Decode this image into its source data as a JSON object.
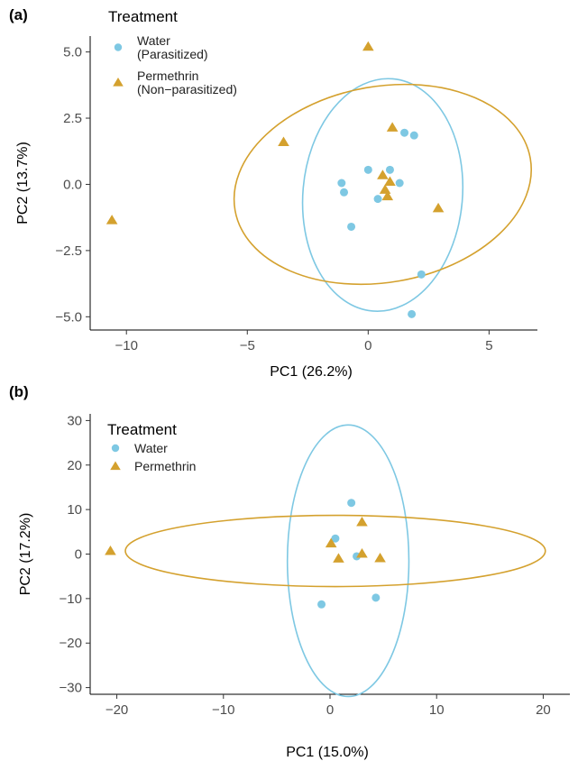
{
  "chart_data": [
    {
      "type": "scatter",
      "panel": "(a)",
      "xlabel": "PC1 (26.2%)",
      "ylabel": "PC2 (13.7%)",
      "xlim": [
        -11.5,
        7.0
      ],
      "ylim": [
        -5.5,
        5.6
      ],
      "xticks": [
        -10,
        -5,
        0,
        5
      ],
      "yticks": [
        -5.0,
        -2.5,
        0.0,
        2.5,
        5.0
      ],
      "xtick_labels": [
        "−10",
        "−5",
        "0",
        "5"
      ],
      "ytick_labels": [
        "−5.0",
        "−2.5",
        "0.0",
        "2.5",
        "5.0"
      ],
      "grid": false,
      "legend": {
        "title": "Treatment",
        "placement": "top-left",
        "entries": [
          {
            "lines": [
              "Water",
              "(Parasitized)"
            ],
            "series": 0
          },
          {
            "lines": [
              "Permethrin",
              "(Non−parasitized)"
            ],
            "series": 1
          }
        ]
      },
      "series": [
        {
          "name": "Water (Parasitized)",
          "marker": "circle",
          "color": "#7ec8e3",
          "points": [
            [
              1.5,
              1.95
            ],
            [
              1.9,
              1.85
            ],
            [
              0.0,
              0.55
            ],
            [
              0.9,
              0.55
            ],
            [
              -1.1,
              0.05
            ],
            [
              -1.0,
              -0.3
            ],
            [
              1.3,
              0.05
            ],
            [
              0.4,
              -0.55
            ],
            [
              -0.7,
              -1.6
            ],
            [
              2.2,
              -3.4
            ],
            [
              1.8,
              -4.9
            ]
          ]
        },
        {
          "name": "Permethrin (Non−parasitized)",
          "marker": "triangle",
          "color": "#d4a12e",
          "points": [
            [
              0.0,
              5.2
            ],
            [
              1.0,
              2.15
            ],
            [
              -3.5,
              1.6
            ],
            [
              0.6,
              0.35
            ],
            [
              0.9,
              0.1
            ],
            [
              0.7,
              -0.2
            ],
            [
              0.8,
              -0.45
            ],
            [
              2.9,
              -0.9
            ],
            [
              -10.6,
              -1.35
            ]
          ]
        }
      ],
      "ellipses": [
        {
          "series": 0,
          "color": "#7ec8e3",
          "cx": 0.6,
          "cy": -0.4,
          "rx": 3.3,
          "ry": 4.4,
          "angle": 5
        },
        {
          "series": 1,
          "color": "#d4a12e",
          "cx": 0.6,
          "cy": 0.0,
          "rx": 6.2,
          "ry": 3.7,
          "angle": -10
        }
      ]
    },
    {
      "type": "scatter",
      "panel": "(b)",
      "xlabel": "PC1 (15.0%)",
      "ylabel": "PC2 (17.2%)",
      "xlim": [
        -22.5,
        22.5
      ],
      "ylim": [
        -31.5,
        31.5
      ],
      "xticks": [
        -20,
        -10,
        0,
        10,
        20
      ],
      "yticks": [
        -30,
        -20,
        -10,
        0,
        10,
        20,
        30
      ],
      "xtick_labels": [
        "−20",
        "−10",
        "0",
        "10",
        "20"
      ],
      "ytick_labels": [
        "−30",
        "−20",
        "−10",
        "0",
        "10",
        "20",
        "30"
      ],
      "grid": false,
      "legend": {
        "title": "Treatment",
        "placement": "top-left",
        "entries": [
          {
            "lines": [
              "Water"
            ],
            "series": 0
          },
          {
            "lines": [
              "Permethrin"
            ],
            "series": 1
          }
        ]
      },
      "series": [
        {
          "name": "Water",
          "marker": "circle",
          "color": "#7ec8e3",
          "points": [
            [
              2.0,
              11.5
            ],
            [
              0.5,
              3.5
            ],
            [
              2.5,
              -0.5
            ],
            [
              4.3,
              -9.8
            ],
            [
              -0.8,
              -11.3
            ]
          ]
        },
        {
          "name": "Permethrin",
          "marker": "triangle",
          "color": "#d4a12e",
          "points": [
            [
              -20.6,
              0.7
            ],
            [
              3.0,
              7.2
            ],
            [
              0.1,
              2.4
            ],
            [
              3.0,
              0.1
            ],
            [
              0.8,
              -1.0
            ],
            [
              4.7,
              -0.9
            ]
          ]
        }
      ],
      "ellipses": [
        {
          "series": 0,
          "color": "#7ec8e3",
          "cx": 1.7,
          "cy": -1.5,
          "rx": 5.7,
          "ry": 30.5,
          "angle": 0
        },
        {
          "series": 1,
          "color": "#d4a12e",
          "cx": 0.5,
          "cy": 0.7,
          "rx": 19.7,
          "ry": 8.0,
          "angle": 0
        }
      ]
    }
  ]
}
